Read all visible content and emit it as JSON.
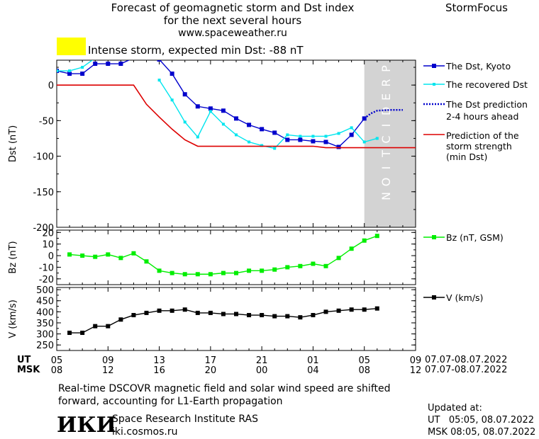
{
  "header": {
    "title_line1": "Forecast of geomagnetic storm and Dst index",
    "title_line2": "for the next several hours",
    "title_line3": "www.spaceweather.ru",
    "brand": "StormFocus"
  },
  "status": {
    "color": "#ffff00",
    "text": "Intense storm, expected min Dst: -88 nT"
  },
  "legend": {
    "dst_kyoto": "The Dst, Kyoto",
    "recovered_dst": "The recovered Dst",
    "prediction_line1": "The Dst prediction",
    "prediction_line2": "2-4 hours ahead",
    "strength_line1": "Prediction of the",
    "strength_line2": "storm strength",
    "strength_line3": "(min Dst)",
    "bz": "Bz (nT, GSM)",
    "v": "V (km/s)"
  },
  "time_axis": {
    "ut_label": "UT",
    "msk_label": "MSK",
    "ut_ticks": [
      "05",
      "09",
      "13",
      "17",
      "21",
      "01",
      "05",
      "09"
    ],
    "msk_ticks": [
      "08",
      "12",
      "16",
      "20",
      "00",
      "04",
      "08",
      "12"
    ],
    "ut_range": "07.07-08.07.2022",
    "msk_range": "07.07-08.07.2022"
  },
  "footer": {
    "note_line1": "Real-time DSCOVR magnetic field and solar wind speed are shifted",
    "note_line2": "forward, accounting for L1-Earth propagation",
    "institute": "Space Research Institute RAS",
    "site": "iki.cosmos.ru",
    "logo_text": "ИКИ",
    "updated_label": "Updated at:",
    "updated_ut": "UT   05:05, 08.07.2022",
    "updated_msk": "MSK 08:05, 08.07.2022"
  },
  "chart_data": [
    {
      "type": "line",
      "ylabel": "Dst (nT)",
      "ylim": [
        -200,
        35
      ],
      "yticks": [
        0,
        -50,
        -100,
        -150,
        -200
      ],
      "xlim": [
        0,
        28
      ],
      "prediction_label": "PREDICTION",
      "prediction_region": [
        24,
        28
      ],
      "colors": {
        "dst_kyoto": "#0000cc",
        "recovered": "#00e5ee",
        "prediction": "#0000cc",
        "strength": "#dd0000",
        "shade": "#d3d3d3"
      },
      "series": [
        {
          "name": "The Dst, Kyoto",
          "x": [
            0,
            1,
            2,
            3,
            4,
            5,
            6,
            7,
            8,
            9,
            10,
            11,
            12,
            13,
            14,
            15,
            16,
            17,
            18,
            19,
            20,
            21,
            22,
            23,
            24
          ],
          "y": [
            20,
            16,
            16,
            30,
            30,
            30,
            38,
            null,
            36,
            16,
            -13,
            -30,
            -33,
            -36,
            -47,
            -56,
            -62,
            -67,
            -77,
            -77,
            -79,
            -80,
            -87,
            -70,
            -47
          ]
        },
        {
          "name": "The recovered Dst",
          "x": [
            0,
            1,
            2,
            3,
            4,
            5,
            6,
            7,
            8,
            9,
            10,
            11,
            12,
            13,
            14,
            15,
            16,
            17,
            18,
            19,
            20,
            21,
            22,
            23,
            24,
            25
          ],
          "y": [
            20,
            20,
            25,
            38,
            null,
            null,
            null,
            null,
            7,
            -21,
            -52,
            -73,
            -37,
            -55,
            -70,
            -80,
            -85,
            -89,
            -70,
            -72,
            -72,
            -72,
            -68,
            -60,
            -80,
            -75
          ]
        },
        {
          "name": "The Dst prediction 2-4 hours ahead",
          "x": [
            24,
            24.5,
            25,
            26,
            27
          ],
          "y": [
            -47,
            -40,
            -36,
            -35,
            -35
          ]
        },
        {
          "name": "Prediction of the storm strength (min Dst)",
          "x": [
            0,
            6,
            7,
            8,
            9,
            10,
            11,
            12,
            13,
            14,
            15,
            16,
            17,
            18,
            19,
            20,
            21,
            22,
            23,
            24,
            25,
            26,
            27,
            28
          ],
          "y": [
            0,
            0,
            -27,
            -45,
            -62,
            -77,
            -86,
            -86,
            -86,
            -86,
            -86,
            -86,
            -86,
            -86,
            -86,
            -86,
            -88,
            -88,
            -88,
            -88,
            -88,
            -88,
            -88,
            -88
          ]
        }
      ]
    },
    {
      "type": "line",
      "ylabel": "Bz (nT)",
      "ylim": [
        -25,
        22
      ],
      "yticks": [
        20,
        10,
        0,
        -10,
        -20
      ],
      "xlim": [
        0,
        28
      ],
      "colors": {
        "bz": "#00ee00"
      },
      "series": [
        {
          "name": "Bz (nT, GSM)",
          "x": [
            1,
            2,
            3,
            4,
            5,
            6,
            7,
            8,
            9,
            10,
            11,
            12,
            13,
            14,
            15,
            16,
            17,
            18,
            19,
            20,
            21,
            22,
            23,
            24,
            25
          ],
          "y": [
            1,
            0,
            -1,
            1,
            -2,
            2,
            -5,
            -13,
            -15,
            -16,
            -16,
            -16,
            -15,
            -15,
            -13,
            -13,
            -12,
            -10,
            -9,
            -7,
            -9,
            -2,
            6,
            13,
            17
          ]
        }
      ]
    },
    {
      "type": "line",
      "ylabel": "V (km/s)",
      "ylim": [
        225,
        510
      ],
      "yticks": [
        500,
        450,
        400,
        350,
        300,
        250
      ],
      "xlim": [
        0,
        28
      ],
      "colors": {
        "v": "#000000"
      },
      "series": [
        {
          "name": "V (km/s)",
          "x": [
            1,
            2,
            3,
            4,
            5,
            6,
            7,
            8,
            9,
            10,
            11,
            12,
            13,
            14,
            15,
            16,
            17,
            18,
            19,
            20,
            21,
            22,
            23,
            24,
            25
          ],
          "y": [
            305,
            305,
            335,
            335,
            365,
            385,
            395,
            405,
            405,
            410,
            395,
            395,
            390,
            390,
            385,
            385,
            380,
            380,
            375,
            385,
            400,
            405,
            410,
            410,
            415
          ]
        }
      ]
    }
  ]
}
